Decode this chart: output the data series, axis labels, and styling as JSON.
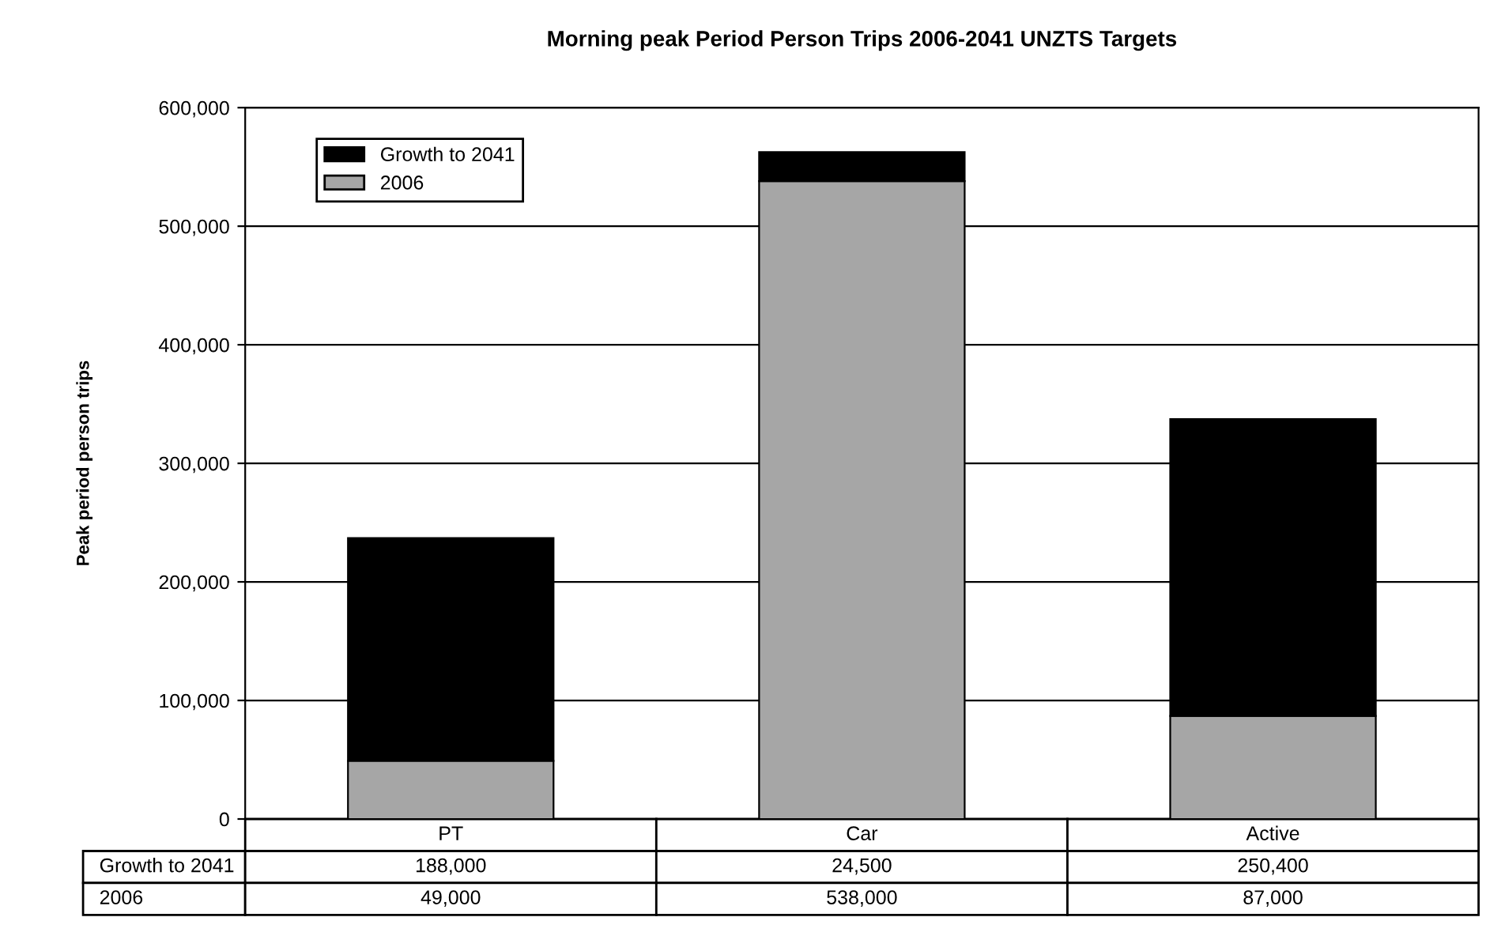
{
  "chart_data": {
    "type": "bar",
    "title": "Morning peak Period Person Trips 2006-2041 UNZTS Targets",
    "ylabel": "Peak period person trips",
    "categories": [
      "PT",
      "Car",
      "Active"
    ],
    "stacked": true,
    "series": [
      {
        "name": "2006",
        "color": "#a6a6a6",
        "values": [
          49000,
          538000,
          87000
        ],
        "value_labels": [
          "49,000",
          "538,000",
          "87,000"
        ]
      },
      {
        "name": "Growth to 2041",
        "color": "#000000",
        "values": [
          188000,
          24500,
          250400
        ],
        "value_labels": [
          "188,000",
          "24,500",
          "250,400"
        ]
      }
    ],
    "ylim": [
      0,
      600000
    ],
    "yticks": [
      {
        "value": 0,
        "label": "0"
      },
      {
        "value": 100000,
        "label": "100,000"
      },
      {
        "value": 200000,
        "label": "200,000"
      },
      {
        "value": 300000,
        "label": "300,000"
      },
      {
        "value": 400000,
        "label": "400,000"
      },
      {
        "value": 500000,
        "label": "500,000"
      },
      {
        "value": 600000,
        "label": "600,000"
      }
    ],
    "grid": "y",
    "legend": "top left"
  }
}
